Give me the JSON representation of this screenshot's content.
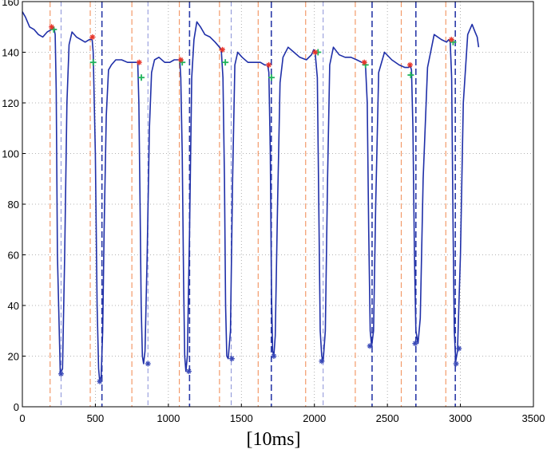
{
  "chart_data": {
    "type": "line",
    "title": "",
    "xlabel": "[10ms]",
    "ylabel": "",
    "xlim": [
      0,
      3500
    ],
    "ylim": [
      0,
      160
    ],
    "xticks": [
      0,
      500,
      1000,
      1500,
      2000,
      2500,
      3000,
      3500
    ],
    "yticks": [
      0,
      20,
      40,
      60,
      80,
      100,
      120,
      140,
      160
    ],
    "grid": true,
    "colors": {
      "line": "#1f2fa8",
      "red_marker": "#e8352a",
      "green_marker": "#1fb45a",
      "black_marker": "#222222",
      "orange_dash": "#f39a6a",
      "blue_dash": "#2a3aa8"
    },
    "series": [
      {
        "x": [
          0,
          20,
          50,
          80,
          110,
          140,
          170,
          200,
          215,
          225,
          232,
          240,
          260,
          275,
          290,
          305,
          320,
          340,
          370,
          400,
          430,
          460,
          478,
          485,
          500,
          512,
          522,
          530,
          540,
          550,
          560,
          575,
          590,
          610,
          640,
          680,
          720,
          760,
          790,
          798,
          806,
          814,
          822,
          830,
          840,
          855,
          870,
          885,
          905,
          935,
          975,
          1010,
          1040,
          1065,
          1078,
          1085,
          1095,
          1104,
          1112,
          1120,
          1130,
          1145,
          1160,
          1175,
          1195,
          1220,
          1250,
          1285,
          1320,
          1350,
          1362,
          1374,
          1384,
          1392,
          1400,
          1410,
          1425,
          1440,
          1455,
          1475,
          1505,
          1545,
          1590,
          1630,
          1660,
          1680,
          1688,
          1698,
          1706,
          1714,
          1722,
          1732,
          1748,
          1765,
          1785,
          1820,
          1860,
          1900,
          1945,
          1980,
          1995,
          2005,
          2020,
          2030,
          2040,
          2050,
          2060,
          2075,
          2090,
          2105,
          2130,
          2170,
          2210,
          2250,
          2290,
          2325,
          2338,
          2350,
          2362,
          2372,
          2382,
          2392,
          2405,
          2420,
          2440,
          2480,
          2530,
          2580,
          2620,
          2645,
          2655,
          2665,
          2675,
          2685,
          2695,
          2710,
          2725,
          2745,
          2775,
          2820,
          2870,
          2905,
          2920,
          2930,
          2940,
          2950,
          2958,
          2968,
          2980,
          3000,
          3020,
          3050,
          3080,
          3100,
          3115,
          3125
        ],
        "y": [
          156,
          154,
          150,
          149,
          147,
          146,
          148,
          149,
          150,
          147,
          125,
          60,
          13,
          15,
          60,
          120,
          143,
          148,
          146,
          145,
          144,
          145,
          145,
          140,
          100,
          40,
          15,
          10,
          12,
          30,
          70,
          115,
          133,
          135,
          137,
          137,
          136,
          136,
          136,
          120,
          80,
          40,
          20,
          17,
          22,
          60,
          110,
          132,
          137,
          138,
          136,
          136,
          137,
          137,
          137,
          130,
          100,
          50,
          20,
          14,
          20,
          70,
          130,
          145,
          152,
          150,
          147,
          146,
          144,
          142,
          141,
          130,
          90,
          40,
          20,
          19,
          30,
          90,
          135,
          140,
          138,
          136,
          136,
          136,
          135,
          135,
          132,
          100,
          45,
          22,
          20,
          28,
          80,
          128,
          138,
          142,
          140,
          138,
          137,
          139,
          141,
          140,
          130,
          80,
          30,
          20,
          18,
          30,
          90,
          135,
          142,
          139,
          138,
          138,
          137,
          136,
          136,
          135,
          120,
          70,
          30,
          24,
          30,
          80,
          132,
          140,
          137,
          135,
          134,
          134,
          135,
          133,
          110,
          60,
          30,
          25,
          35,
          90,
          134,
          147,
          145,
          144,
          145,
          144,
          130,
          70,
          30,
          18,
          22,
          60,
          120,
          147,
          151,
          148,
          146,
          142
        ]
      }
    ],
    "red_markers": [
      [
        200,
        150
      ],
      [
        480,
        146
      ],
      [
        800,
        136
      ],
      [
        1085,
        137
      ],
      [
        1370,
        141
      ],
      [
        1688,
        135
      ],
      [
        2005,
        140
      ],
      [
        2342,
        136
      ],
      [
        2655,
        135
      ],
      [
        2938,
        145
      ]
    ],
    "green_markers": [
      [
        215,
        149
      ],
      [
        485,
        136
      ],
      [
        815,
        130
      ],
      [
        1095,
        136
      ],
      [
        1390,
        136
      ],
      [
        1706,
        130
      ],
      [
        2025,
        140
      ],
      [
        2350,
        135
      ],
      [
        2660,
        131
      ],
      [
        2950,
        144
      ]
    ],
    "star_markers": [
      [
        265,
        13
      ],
      [
        530,
        10
      ],
      [
        860,
        17
      ],
      [
        1140,
        14
      ],
      [
        1435,
        19
      ],
      [
        1722,
        20
      ],
      [
        2050,
        18
      ],
      [
        2380,
        24
      ],
      [
        2690,
        25
      ],
      [
        2970,
        17
      ],
      [
        2990,
        23
      ]
    ],
    "vertical_lines": [
      {
        "x": 190,
        "style": "orange"
      },
      {
        "x": 265,
        "style": "blue-thin"
      },
      {
        "x": 465,
        "style": "orange"
      },
      {
        "x": 545,
        "style": "blue"
      },
      {
        "x": 750,
        "style": "orange"
      },
      {
        "x": 860,
        "style": "blue-thin"
      },
      {
        "x": 1075,
        "style": "orange"
      },
      {
        "x": 1145,
        "style": "blue"
      },
      {
        "x": 1350,
        "style": "orange"
      },
      {
        "x": 1430,
        "style": "blue-thin"
      },
      {
        "x": 1615,
        "style": "orange"
      },
      {
        "x": 1705,
        "style": "blue"
      },
      {
        "x": 1940,
        "style": "orange"
      },
      {
        "x": 2060,
        "style": "blue-thin"
      },
      {
        "x": 2280,
        "style": "orange"
      },
      {
        "x": 2395,
        "style": "blue"
      },
      {
        "x": 2595,
        "style": "orange"
      },
      {
        "x": 2695,
        "style": "blue"
      },
      {
        "x": 2900,
        "style": "orange"
      },
      {
        "x": 2965,
        "style": "blue"
      }
    ]
  }
}
